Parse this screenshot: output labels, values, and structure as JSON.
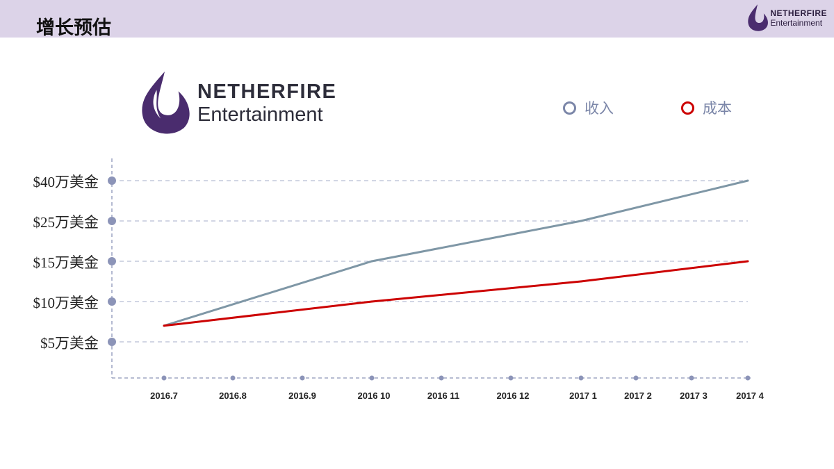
{
  "header": {
    "title": "增长预估",
    "logo_line1": "NETHERFIRE",
    "logo_line2": "Entertainment"
  },
  "colors": {
    "header_bg": "#dcd3e8",
    "revenue": "#7f97a6",
    "cost": "#cc0000",
    "axis": "#8c94b8"
  },
  "chart_data": {
    "type": "line",
    "categories": [
      "2016.7",
      "2016.8",
      "2016.9",
      "2016 10",
      "2016 11",
      "2016 12",
      "2017 1",
      "2017 2",
      "2017 3",
      "2017 4"
    ],
    "y_ticks": [
      5,
      10,
      15,
      25,
      40
    ],
    "y_tick_labels": [
      "$5万美金",
      "$10万美金",
      "$15万美金",
      "$25万美金",
      "$40万美金"
    ],
    "series": [
      {
        "name": "收入",
        "points": [
          [
            0,
            7
          ],
          [
            3,
            15
          ],
          [
            6,
            25
          ],
          [
            9,
            40
          ]
        ]
      },
      {
        "name": "成本",
        "points": [
          [
            0,
            7
          ],
          [
            3,
            10
          ],
          [
            6,
            12.5
          ],
          [
            9,
            15
          ]
        ]
      }
    ],
    "legend_placement": "top-right",
    "grid": true
  }
}
